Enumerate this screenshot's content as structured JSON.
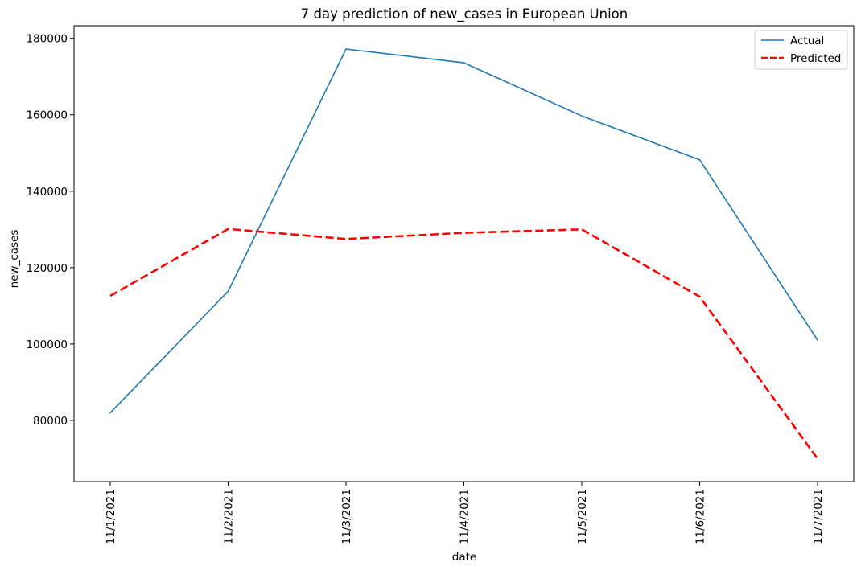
{
  "chart_data": {
    "type": "line",
    "title": "7 day prediction of new_cases in European Union",
    "xlabel": "date",
    "ylabel": "new_cases",
    "categories": [
      "11/1/2021",
      "11/2/2021",
      "11/3/2021",
      "11/4/2021",
      "11/5/2021",
      "11/6/2021",
      "11/7/2021"
    ],
    "series": [
      {
        "name": "Actual",
        "color": "#1f77b4",
        "style": "solid",
        "values": [
          82000,
          113800,
          177200,
          173600,
          159700,
          148200,
          101000
        ]
      },
      {
        "name": "Predicted",
        "color": "#ff0000",
        "style": "dashed",
        "values": [
          112600,
          130100,
          127500,
          129100,
          130000,
          112400,
          70000
        ]
      }
    ],
    "yticks": [
      "80000",
      "100000",
      "120000",
      "140000",
      "160000",
      "180000"
    ],
    "ylim": [
      64000,
      183300
    ],
    "grid": false,
    "legend_position": "top-right"
  }
}
